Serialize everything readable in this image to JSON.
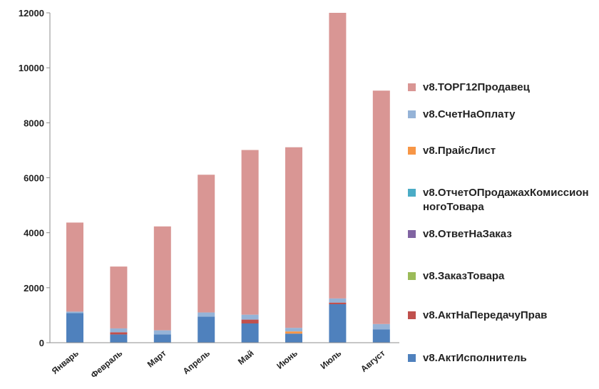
{
  "chart_data": {
    "type": "bar",
    "stacked": true,
    "categories": [
      "Январь",
      "Февраль",
      "Март",
      "Апрель",
      "Май",
      "Июнь",
      "Июль",
      "Август"
    ],
    "ylim": [
      0,
      12000
    ],
    "yticks": [
      0,
      2000,
      4000,
      6000,
      8000,
      10000,
      12000
    ],
    "grid": false,
    "legend_position": "right",
    "series": [
      {
        "name": "v8.АктИсполнитель",
        "color": "#4f81bd",
        "values": [
          1080,
          300,
          300,
          950,
          700,
          330,
          1400,
          480
        ]
      },
      {
        "name": "v8.АктНаПередачуПрав",
        "color": "#c0504d",
        "values": [
          0,
          80,
          0,
          0,
          140,
          0,
          60,
          0
        ]
      },
      {
        "name": "v8.ЗаказТовара",
        "color": "#9bbb59",
        "values": [
          0,
          0,
          0,
          0,
          0,
          0,
          0,
          0
        ]
      },
      {
        "name": "v8.ОтветНаЗаказ",
        "color": "#8064a2",
        "values": [
          0,
          0,
          0,
          0,
          0,
          0,
          0,
          0
        ]
      },
      {
        "name": "v8.ОтчетОПродажахКомиссионногоТовара",
        "color": "#4bacc6",
        "values": [
          0,
          0,
          0,
          0,
          0,
          0,
          0,
          0
        ]
      },
      {
        "name": "v8.ПрайсЛист",
        "color": "#f79646",
        "values": [
          0,
          0,
          0,
          0,
          0,
          80,
          0,
          0
        ]
      },
      {
        "name": "v8.СчетНаОплату",
        "color": "#95b3d7",
        "values": [
          50,
          140,
          150,
          150,
          180,
          130,
          150,
          200
        ]
      },
      {
        "name": "v8.ТОРГ12Продавец",
        "color": "#d99694",
        "values": [
          3240,
          2250,
          3780,
          5010,
          5990,
          6570,
          10390,
          8490
        ]
      }
    ]
  },
  "legend_order": [
    7,
    6,
    5,
    4,
    3,
    2,
    1,
    0
  ]
}
